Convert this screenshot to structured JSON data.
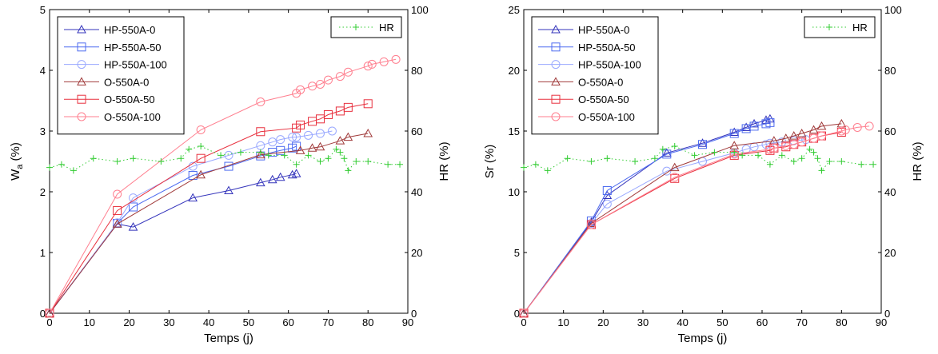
{
  "colors": {
    "HP-550A-0": "#3333bb",
    "HP-550A-50": "#4d6bf0",
    "HP-550A-100": "#99a8ff",
    "O-550A-0": "#a03a3a",
    "O-550A-50": "#e8303e",
    "O-550A-100": "#ff7f8f",
    "HR": "#33cc33"
  },
  "chart_data": [
    {
      "type": "line",
      "xlabel": "Temps (j)",
      "ylabel_left": "W",
      "ylabel_left_sub": "a",
      "ylabel_left_unit": " (%)",
      "ylabel_right": "HR (%)",
      "xlim": [
        0,
        90
      ],
      "ylim": [
        0,
        5
      ],
      "y2lim": [
        0,
        100
      ],
      "xticks": [
        "0",
        "10",
        "20",
        "30",
        "40",
        "50",
        "60",
        "70",
        "80",
        "90"
      ],
      "yticks": [
        "0",
        "1",
        "2",
        "3",
        "4",
        "5"
      ],
      "y2ticks": [
        "0",
        "20",
        "40",
        "60",
        "80",
        "100"
      ],
      "legend_position": "top-left",
      "hr_legend_position": "top-right",
      "series": [
        {
          "name": "HP-550A-0",
          "marker": "triangle",
          "x": [
            0,
            17,
            21,
            36,
            45,
            53,
            56,
            58,
            61,
            62
          ],
          "y": [
            0,
            1.47,
            1.42,
            1.9,
            2.02,
            2.15,
            2.2,
            2.24,
            2.28,
            2.3
          ]
        },
        {
          "name": "HP-550A-50",
          "marker": "square",
          "x": [
            0,
            17,
            21,
            36,
            45,
            53,
            56,
            58,
            61,
            62
          ],
          "y": [
            0,
            1.48,
            1.75,
            2.27,
            2.42,
            2.59,
            2.65,
            2.68,
            2.72,
            2.75
          ]
        },
        {
          "name": "HP-550A-100",
          "marker": "circle",
          "x": [
            0,
            17,
            21,
            36,
            45,
            53,
            56,
            58,
            61,
            62,
            65,
            68,
            71
          ],
          "y": [
            0,
            1.49,
            1.9,
            2.42,
            2.6,
            2.76,
            2.82,
            2.86,
            2.9,
            2.9,
            2.93,
            2.96,
            3.0
          ]
        },
        {
          "name": "O-550A-0",
          "marker": "triangle",
          "x": [
            0,
            17,
            38,
            53,
            63,
            66,
            68,
            73,
            75,
            80
          ],
          "y": [
            0,
            1.47,
            2.28,
            2.61,
            2.68,
            2.72,
            2.74,
            2.84,
            2.9,
            2.96
          ]
        },
        {
          "name": "O-550A-50",
          "marker": "square",
          "x": [
            0,
            17,
            38,
            53,
            62,
            63,
            66,
            68,
            70,
            73,
            75,
            80
          ],
          "y": [
            0,
            1.69,
            2.55,
            2.99,
            3.05,
            3.1,
            3.16,
            3.2,
            3.27,
            3.33,
            3.39,
            3.45
          ]
        },
        {
          "name": "O-550A-100",
          "marker": "circle",
          "x": [
            0,
            17,
            38,
            53,
            62,
            63,
            66,
            68,
            70,
            73,
            75,
            80,
            81,
            84,
            87
          ],
          "y": [
            0,
            1.96,
            3.02,
            3.48,
            3.62,
            3.68,
            3.74,
            3.77,
            3.84,
            3.9,
            3.97,
            4.07,
            4.1,
            4.14,
            4.18
          ]
        },
        {
          "name": "HR",
          "marker": "plus",
          "axis": "right",
          "dotted": true,
          "x": [
            0,
            3,
            6,
            11,
            17,
            21,
            28,
            33,
            35,
            38,
            43,
            48,
            53,
            55,
            59,
            62,
            65,
            68,
            70,
            72,
            73,
            74,
            75,
            77,
            80,
            85,
            88
          ],
          "y": [
            48,
            49,
            47,
            51,
            50,
            51,
            50,
            51,
            54,
            55,
            52,
            53,
            53,
            52,
            52,
            49,
            52,
            50,
            51,
            54,
            53,
            51,
            47,
            50,
            50,
            49,
            49
          ]
        }
      ]
    },
    {
      "type": "line",
      "xlabel": "Temps (j)",
      "ylabel_left": "Sr (%)",
      "ylabel_right": "HR (%)",
      "xlim": [
        0,
        90
      ],
      "ylim": [
        0,
        25
      ],
      "y2lim": [
        0,
        100
      ],
      "xticks": [
        "0",
        "10",
        "20",
        "30",
        "40",
        "50",
        "60",
        "70",
        "80",
        "90"
      ],
      "yticks": [
        "0",
        "5",
        "10",
        "15",
        "20",
        "25"
      ],
      "y2ticks": [
        "0",
        "20",
        "40",
        "60",
        "80",
        "100"
      ],
      "legend_position": "top-left",
      "hr_legend_position": "top-right",
      "series": [
        {
          "name": "HP-550A-0",
          "marker": "triangle",
          "x": [
            0,
            17,
            21,
            36,
            45,
            53,
            56,
            58,
            61,
            62
          ],
          "y": [
            0,
            7.5,
            9.7,
            13.2,
            14.0,
            14.9,
            15.3,
            15.6,
            15.9,
            16.0
          ]
        },
        {
          "name": "HP-550A-50",
          "marker": "square",
          "x": [
            0,
            17,
            21,
            36,
            45,
            53,
            56,
            58,
            61,
            62
          ],
          "y": [
            0,
            7.6,
            10.1,
            13.1,
            13.9,
            14.8,
            15.2,
            15.4,
            15.6,
            15.7
          ]
        },
        {
          "name": "HP-550A-100",
          "marker": "circle",
          "x": [
            0,
            17,
            21,
            36,
            45,
            53,
            56,
            58,
            61,
            62,
            65,
            68,
            71
          ],
          "y": [
            0,
            7.4,
            9.0,
            11.7,
            12.5,
            13.2,
            13.5,
            13.7,
            13.9,
            14.0,
            14.1,
            14.2,
            14.3
          ]
        },
        {
          "name": "O-550A-0",
          "marker": "triangle",
          "x": [
            0,
            17,
            38,
            53,
            63,
            66,
            68,
            70,
            73,
            75,
            80
          ],
          "y": [
            0,
            7.4,
            12.0,
            13.8,
            14.2,
            14.4,
            14.6,
            14.8,
            15.1,
            15.4,
            15.6
          ]
        },
        {
          "name": "O-550A-50",
          "marker": "square",
          "x": [
            0,
            17,
            38,
            53,
            62,
            63,
            66,
            68,
            70,
            73,
            75,
            80
          ],
          "y": [
            0,
            7.3,
            11.1,
            13.0,
            13.4,
            13.6,
            13.7,
            13.9,
            14.1,
            14.4,
            14.6,
            14.9
          ]
        },
        {
          "name": "O-550A-100",
          "marker": "circle",
          "x": [
            0,
            17,
            38,
            53,
            62,
            63,
            66,
            68,
            70,
            73,
            75,
            80,
            81,
            84,
            87
          ],
          "y": [
            0,
            7.3,
            11.2,
            13.1,
            13.5,
            13.6,
            13.8,
            13.9,
            14.1,
            14.4,
            14.6,
            15.0,
            15.1,
            15.3,
            15.4
          ]
        },
        {
          "name": "HR",
          "marker": "plus",
          "axis": "right",
          "dotted": true,
          "x": [
            0,
            3,
            6,
            11,
            17,
            21,
            28,
            33,
            35,
            38,
            43,
            48,
            53,
            55,
            59,
            62,
            65,
            68,
            70,
            72,
            73,
            74,
            75,
            77,
            80,
            85,
            88
          ],
          "y": [
            48,
            49,
            47,
            51,
            50,
            51,
            50,
            51,
            54,
            55,
            52,
            53,
            53,
            52,
            52,
            49,
            52,
            50,
            51,
            54,
            53,
            51,
            47,
            50,
            50,
            49,
            49
          ]
        }
      ]
    }
  ]
}
